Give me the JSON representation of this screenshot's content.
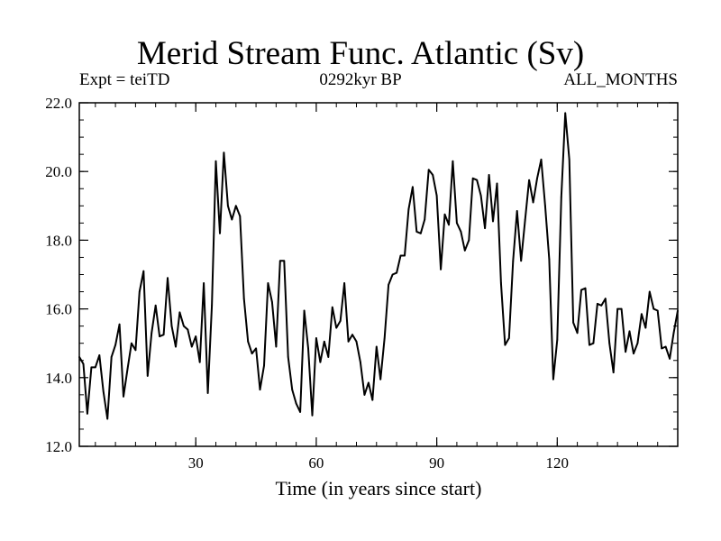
{
  "chart_data": {
    "type": "line",
    "title": "Merid Stream Func. Atlantic (Sv)",
    "subtitle_left": "Expt = teiTD",
    "subtitle_center": "0292kyr BP",
    "subtitle_right": "ALL_MONTHS",
    "xlabel": "Time (in years since start)",
    "ylabel": "",
    "xlim": [
      1,
      150
    ],
    "ylim": [
      12.0,
      22.0
    ],
    "xticks": [
      30,
      60,
      90,
      120
    ],
    "xtick_labels": [
      "30",
      "60",
      "90",
      "120"
    ],
    "xminor_step": 5,
    "yticks": [
      12.0,
      14.0,
      16.0,
      18.0,
      20.0,
      22.0
    ],
    "ytick_labels": [
      "12.0",
      "14.0",
      "16.0",
      "18.0",
      "20.0",
      "22.0"
    ],
    "yminor_step": 0.5,
    "grid": false,
    "series": [
      {
        "name": "Merid Stream Func. Atlantic",
        "x": [
          1,
          2,
          3,
          4,
          5,
          6,
          7,
          8,
          9,
          10,
          11,
          12,
          13,
          14,
          15,
          16,
          17,
          18,
          19,
          20,
          21,
          22,
          23,
          24,
          25,
          26,
          27,
          28,
          29,
          30,
          31,
          32,
          33,
          34,
          35,
          36,
          37,
          38,
          39,
          40,
          41,
          42,
          43,
          44,
          45,
          46,
          47,
          48,
          49,
          50,
          51,
          52,
          53,
          54,
          55,
          56,
          57,
          58,
          59,
          60,
          61,
          62,
          63,
          64,
          65,
          66,
          67,
          68,
          69,
          70,
          71,
          72,
          73,
          74,
          75,
          76,
          77,
          78,
          79,
          80,
          81,
          82,
          83,
          84,
          85,
          86,
          87,
          88,
          89,
          90,
          91,
          92,
          93,
          94,
          95,
          96,
          97,
          98,
          99,
          100,
          101,
          102,
          103,
          104,
          105,
          106,
          107,
          108,
          109,
          110,
          111,
          112,
          113,
          114,
          115,
          116,
          117,
          118,
          119,
          120,
          121,
          122,
          123,
          124,
          125,
          126,
          127,
          128,
          129,
          130,
          131,
          132,
          133,
          134,
          135,
          136,
          137,
          138,
          139,
          140,
          141,
          142,
          143,
          144,
          145,
          146,
          147,
          148,
          149,
          150
        ],
        "values": [
          14.6,
          14.4,
          12.95,
          14.3,
          14.3,
          14.65,
          13.6,
          12.8,
          14.6,
          14.95,
          15.55,
          13.45,
          14.25,
          15.0,
          14.8,
          16.5,
          17.1,
          14.05,
          15.3,
          16.1,
          15.2,
          15.25,
          16.9,
          15.5,
          14.9,
          15.9,
          15.5,
          15.4,
          14.9,
          15.2,
          14.45,
          16.75,
          13.55,
          16.1,
          20.3,
          18.2,
          20.55,
          19.0,
          18.6,
          19.0,
          18.7,
          16.3,
          15.05,
          14.7,
          14.85,
          13.65,
          14.35,
          16.75,
          16.2,
          14.9,
          17.4,
          17.4,
          14.6,
          13.65,
          13.25,
          13.0,
          15.95,
          14.85,
          12.9,
          15.15,
          14.45,
          15.05,
          14.6,
          16.05,
          15.45,
          15.65,
          16.75,
          15.05,
          15.25,
          15.05,
          14.45,
          13.5,
          13.85,
          13.35,
          14.9,
          13.95,
          15.15,
          16.7,
          17.0,
          17.05,
          17.55,
          17.55,
          18.9,
          19.55,
          18.25,
          18.2,
          18.6,
          20.05,
          19.9,
          19.3,
          17.15,
          18.75,
          18.45,
          20.3,
          18.5,
          18.25,
          17.7,
          18.0,
          19.8,
          19.75,
          19.3,
          18.35,
          19.9,
          18.55,
          19.65,
          16.75,
          14.95,
          15.15,
          17.4,
          18.85,
          17.4,
          18.6,
          19.75,
          19.1,
          19.8,
          20.35,
          19.0,
          17.45,
          13.95,
          15.1,
          19.25,
          21.7,
          20.35,
          15.6,
          15.3,
          16.55,
          16.6,
          14.95,
          15.0,
          16.15,
          16.1,
          16.3,
          15.0,
          14.15,
          16.0,
          16.0,
          14.75,
          15.35,
          14.7,
          15.0,
          15.85,
          15.45,
          16.5,
          16.0,
          15.95,
          14.85,
          14.9,
          14.55,
          15.3,
          15.95
        ]
      }
    ]
  }
}
